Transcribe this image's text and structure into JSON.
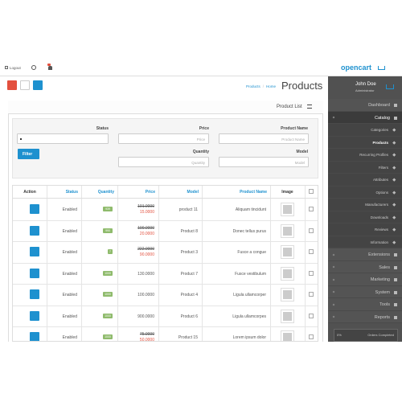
{
  "topbar": {
    "logout": "Logout",
    "logo": "opencart"
  },
  "header": {
    "breadcrumb": [
      "Products",
      "Home"
    ],
    "title": "Products"
  },
  "panel": {
    "title": "Product List"
  },
  "filter": {
    "labels": {
      "status": "Status",
      "price": "Price",
      "product_name": "Product Name",
      "quantity": "Quantity",
      "model": "Model"
    },
    "placeholders": {
      "price": "Price",
      "product_name": "Product Name",
      "quantity": "Quantity",
      "model": "Model"
    },
    "button": "Filter"
  },
  "table": {
    "columns": [
      "Action",
      "Status",
      "Quantity",
      "Price",
      "Model",
      "Product Name",
      "Image"
    ],
    "rows": [
      {
        "status": "Enabled",
        "quantity": "939",
        "old_price": "101.0000",
        "price": "15.0000",
        "model": "product 11",
        "name": "Aliquam tincidunt"
      },
      {
        "status": "Enabled",
        "quantity": "990",
        "old_price": "100.0000",
        "price": "20.0000",
        "model": "Product 8",
        "name": "Donec tellus purus"
      },
      {
        "status": "Enabled",
        "quantity": "7",
        "old_price": "222.0000",
        "price": "90.0000",
        "model": "Product 3",
        "name": "Fusce a congue"
      },
      {
        "status": "Enabled",
        "quantity": "1000",
        "old_price": null,
        "price": "130.0000",
        "model": "Product 7",
        "name": "Fusce vestibulum"
      },
      {
        "status": "Enabled",
        "quantity": "1000",
        "old_price": null,
        "price": "100.0000",
        "model": "Product 4",
        "name": "Ligula ullamcorper"
      },
      {
        "status": "Enabled",
        "quantity": "1000",
        "old_price": null,
        "price": "900.0000",
        "model": "Product 6",
        "name": "Ligula ullamcorpes"
      },
      {
        "status": "Enabled",
        "quantity": "1000",
        "old_price": "75.0000",
        "price": "50.0000",
        "model": "Product 15",
        "name": "Lorem ipsum dolor"
      }
    ]
  },
  "sidebar": {
    "user": {
      "name": "John Doe",
      "role": "Administrator"
    },
    "menu": [
      {
        "label": "Dashboard",
        "level": 1
      },
      {
        "label": "Catalog",
        "level": 1
      },
      {
        "label": "Categories",
        "level": 2
      },
      {
        "label": "Products",
        "level": 2
      },
      {
        "label": "Recurring Profiles",
        "level": 2
      },
      {
        "label": "Filters",
        "level": 2
      },
      {
        "label": "Attributes",
        "level": 2
      },
      {
        "label": "Options",
        "level": 2
      },
      {
        "label": "Manufacturers",
        "level": 2
      },
      {
        "label": "Downloads",
        "level": 2
      },
      {
        "label": "Reviews",
        "level": 2
      },
      {
        "label": "Information",
        "level": 2
      },
      {
        "label": "Extensions",
        "level": 1
      },
      {
        "label": "Sales",
        "level": 1
      },
      {
        "label": "Marketing",
        "level": 1
      },
      {
        "label": "System",
        "level": 1
      },
      {
        "label": "Tools",
        "level": 1
      },
      {
        "label": "Reports",
        "level": 1
      }
    ],
    "stats": {
      "percent": "0%",
      "label": "Orders Completed"
    }
  }
}
